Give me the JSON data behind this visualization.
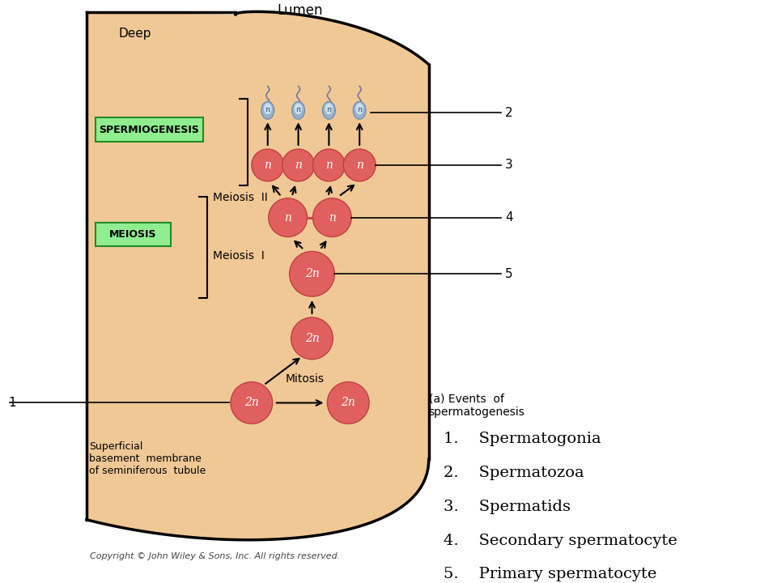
{
  "bg_color": "#f0c896",
  "white_bg": "#ffffff",
  "cell_red": "#e06060",
  "cell_red_border": "#c04040",
  "cell_blue_gray": "#9ab0cc",
  "cell_inner": "#c8dff0",
  "green_box_bg": "#90ee90",
  "green_box_border": "#228B22",
  "title_lumen": "Lumen",
  "label_deep": "Deep",
  "label_superficial": "Superficial\nbasement  membrane\nof seminiferous  tubule",
  "label_spermiogenesis": "SPERMIOGENESIS",
  "label_meiosis": "MEIOSIS",
  "label_meiosis_ii": "Meiosis  II",
  "label_meiosis_i": "Meiosis  I",
  "label_mitosis": "Mitosis",
  "label_events": "(a) Events  of\nspermatogenesis",
  "copyright": "Copyright © John Wiley & Sons, Inc. All rights reserved.",
  "numbered_labels": [
    "1.    Spermatogonia",
    "2.    Spermatozoa",
    "3.    Spermatids",
    "4.    Secondary spermatocyte",
    "5.    Primary spermatocyte"
  ]
}
